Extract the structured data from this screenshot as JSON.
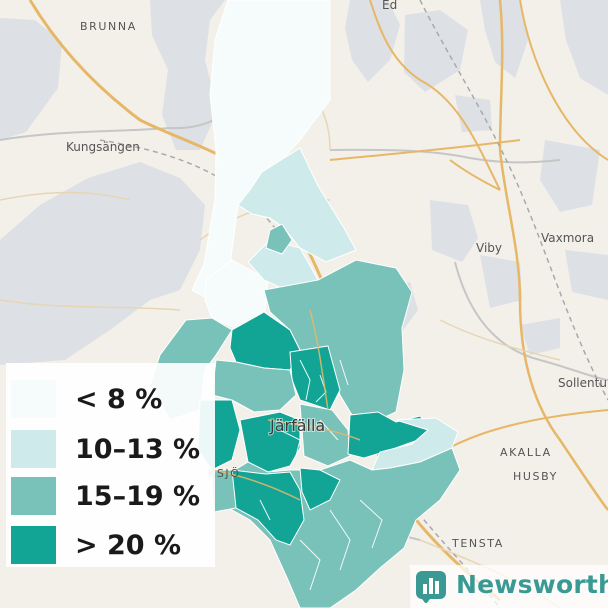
{
  "map": {
    "places": {
      "brunna": "BRUNNA",
      "ed": "Ed",
      "kungsangen": "Kungsängen",
      "viby": "Viby",
      "vaxmora": "Vaxmora",
      "sollentuna": "Sollentu",
      "akalla": "AKALLA",
      "husby": "HUSBY",
      "tensta": "TENSTA",
      "jakobsberg": "KSJÖ",
      "jarfalla": "Järfälla"
    },
    "colors": {
      "background": "#f3f0ea",
      "water": "#dde0e5",
      "road_major": "#e7b768",
      "road_minor": "#e6d6b3",
      "railway": "#a9a9a9",
      "border": "#c6c6c6"
    }
  },
  "legend": {
    "items": [
      {
        "label": "< 8 %",
        "color": "#f6fcfc"
      },
      {
        "label": "10–13 %",
        "color": "#cfeaea"
      },
      {
        "label": "15–19 %",
        "color": "#78c2b9"
      },
      {
        "label": "> 20 %",
        "color": "#12a595"
      }
    ]
  },
  "brand": {
    "name": "Newsworthy",
    "color": "#3a9a93"
  }
}
